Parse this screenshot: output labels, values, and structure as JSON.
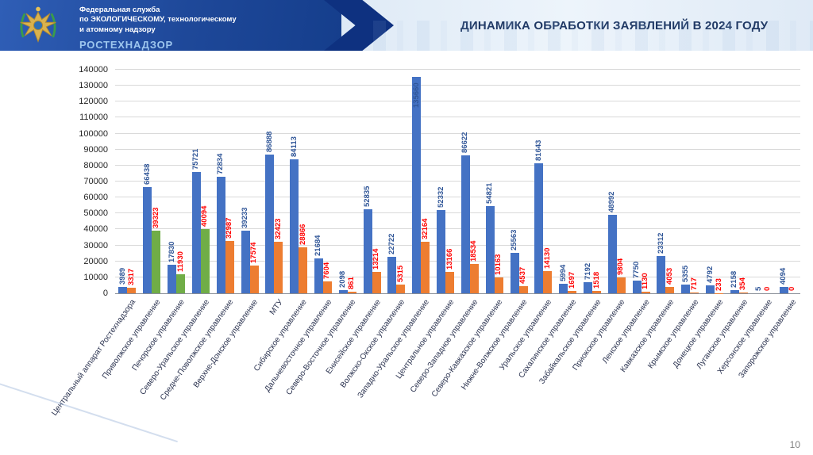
{
  "header": {
    "org_line1": "Федеральная служба",
    "org_line2": "по ЭКОЛОГИЧЕСКОМУ, технологическому",
    "org_line3": "и атомному надзору",
    "org_name": "РОСТЕХНАДЗОР",
    "title": "ДИНАМИКА ОБРАБОТКИ ЗАЯВЛЕНИЙ В 2024 ГОДУ"
  },
  "footer": {
    "page_number": "10"
  },
  "chart_data": {
    "type": "bar",
    "title": "ДИНАМИКА ОБРАБОТКИ ЗАЯВЛЕНИЙ В 2024 ГОДУ",
    "ylim": [
      0,
      140000
    ],
    "ytick_step": 10000,
    "grid": true,
    "legend": false,
    "categories": [
      "Центральный аппарат Ростехнадзора",
      "Приволжское управление",
      "Печорское управление",
      "Северо-Уральское управление",
      "Средне-Поволжское управление",
      "Верхне-Донское управление",
      "МТУ",
      "Сибирское управление",
      "Дальневосточное управление",
      "Северо-Восточное управление",
      "Енисейское управление",
      "Волжско-Окское управление",
      "Западно-Уральское управление",
      "Центральное управление",
      "Северо-Западное управление",
      "Северо-Кавказское управление",
      "Нижне-Волжское управление",
      "Уральское управление",
      "Сахалинское управление",
      "Забайкальское управление",
      "Приокское управление",
      "Ленское управление",
      "Кавказское управление",
      "Крымское управление",
      "Донецкое управление",
      "Луганское управление",
      "Херсонское управление",
      "Запорожское управление"
    ],
    "series": [
      {
        "color": "#4472C4",
        "values": [
          3989,
          66438,
          17830,
          75721,
          72834,
          39233,
          86888,
          84113,
          21684,
          2098,
          52835,
          22722,
          135660,
          52332,
          86622,
          54821,
          25563,
          81643,
          5994,
          7192,
          48992,
          7750,
          23312,
          5355,
          4792,
          2158,
          5,
          4094
        ]
      },
      {
        "color": "#ED7D31",
        "color_overrides": {
          "1": "#70AD47",
          "2": "#70AD47",
          "3": "#70AD47"
        },
        "values": [
          3317,
          39323,
          11930,
          40094,
          32987,
          17574,
          32423,
          28866,
          7604,
          861,
          13214,
          5315,
          32164,
          13166,
          18534,
          10163,
          4537,
          14130,
          1697,
          1518,
          9804,
          1130,
          4053,
          717,
          233,
          354,
          0,
          0
        ]
      }
    ],
    "value_label_colors": {
      "primary": "#2F5597",
      "secondary": "#FF0000"
    }
  }
}
